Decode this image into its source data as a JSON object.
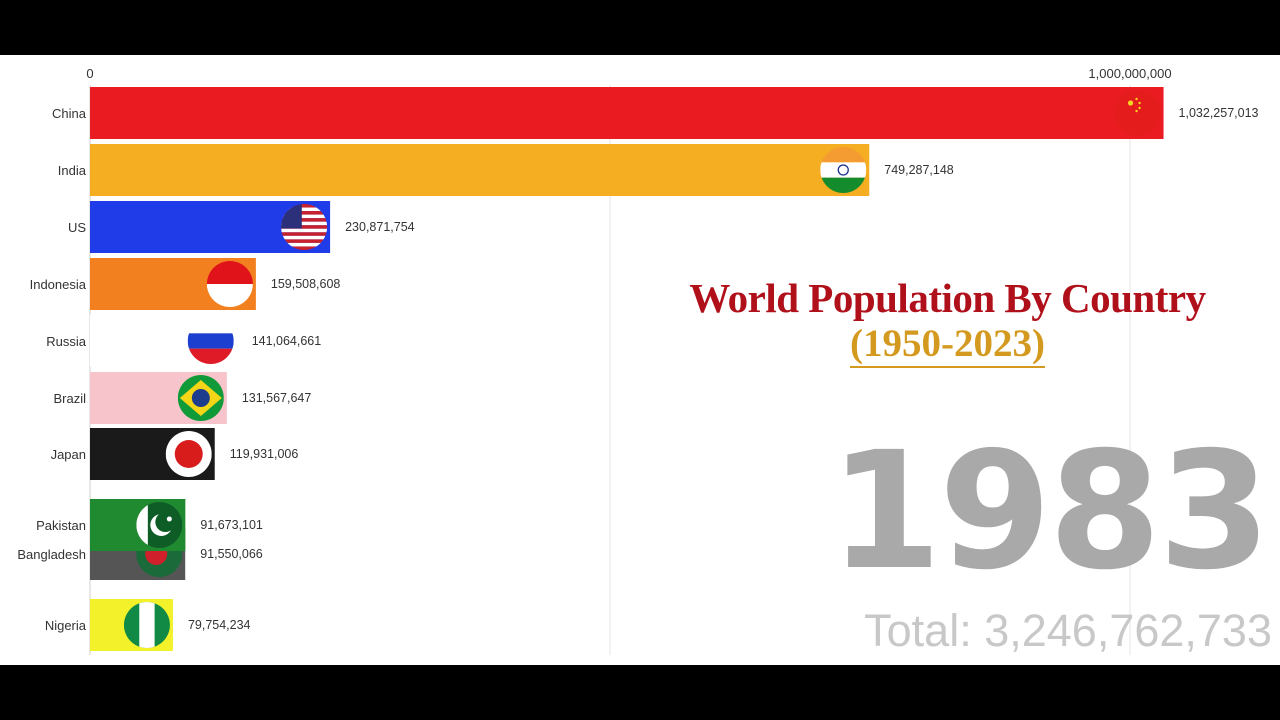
{
  "chart_data": {
    "type": "bar",
    "orientation": "horizontal",
    "title": "World Population By Country",
    "subtitle": "(1950-2023)",
    "categories": [
      "China",
      "India",
      "US",
      "Indonesia",
      "Russia",
      "Brazil",
      "Japan",
      "Pakistan",
      "Bangladesh",
      "Nigeria"
    ],
    "values": [
      1032257013,
      749287148,
      230871754,
      159508608,
      141064661,
      131567647,
      119931006,
      91673101,
      91550066,
      79754234
    ],
    "value_labels": [
      "1,032,257,013",
      "749,287,148",
      "230,871,754",
      "159,508,608",
      "141,064,661",
      "131,567,647",
      "119,931,006",
      "91,673,101",
      "91,550,066",
      "79,754,234"
    ],
    "bar_colors": [
      "#ea1c22",
      "#f5ad21",
      "#1f3ce8",
      "#f3801f",
      "#ffffff",
      "#f7c4cc",
      "#1a1a1a",
      "#1f8a30",
      "#555555",
      "#f3f22a"
    ],
    "flag_icons": [
      "china-flag-icon",
      "india-flag-icon",
      "us-flag-icon",
      "indonesia-flag-icon",
      "russia-flag-icon",
      "brazil-flag-icon",
      "japan-flag-icon",
      "pakistan-flag-icon",
      "bangladesh-flag-icon",
      "nigeria-flag-icon"
    ],
    "x_ticks": [
      0,
      1000000000
    ],
    "x_tick_labels": [
      "0",
      "1,000,000,000"
    ],
    "xlim": [
      0,
      1000000000
    ],
    "grid": true,
    "year": "1983",
    "total": "Total: 3,246,762,733"
  }
}
